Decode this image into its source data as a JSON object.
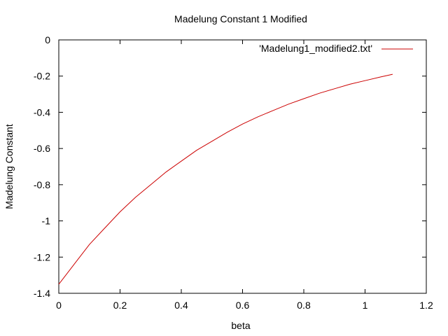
{
  "chart_data": {
    "type": "line",
    "title": "Madelung Constant 1 Modified",
    "xlabel": "beta",
    "ylabel": "Madelung Constant",
    "xlim": [
      0,
      1.2
    ],
    "ylim": [
      -1.4,
      0
    ],
    "xticks": [
      "0",
      "0.2",
      "0.4",
      "0.6",
      "0.8",
      "1",
      "1.2"
    ],
    "yticks": [
      "0",
      "-0.2",
      "-0.4",
      "-0.6",
      "-0.8",
      "-1",
      "-1.2",
      "-1.4"
    ],
    "grid": false,
    "legend_position": "top-right",
    "series": [
      {
        "name": "'Madelung1_modified2.txt'",
        "color": "#cc0000",
        "x": [
          0,
          0.05,
          0.1,
          0.15,
          0.2,
          0.25,
          0.3,
          0.35,
          0.4,
          0.45,
          0.5,
          0.55,
          0.6,
          0.65,
          0.7,
          0.75,
          0.8,
          0.85,
          0.9,
          0.95,
          1.0,
          1.05,
          1.09
        ],
        "y": [
          -1.35,
          -1.24,
          -1.13,
          -1.04,
          -0.95,
          -0.87,
          -0.8,
          -0.73,
          -0.67,
          -0.61,
          -0.56,
          -0.51,
          -0.465,
          -0.425,
          -0.39,
          -0.355,
          -0.325,
          -0.295,
          -0.27,
          -0.245,
          -0.225,
          -0.205,
          -0.19
        ]
      }
    ]
  }
}
